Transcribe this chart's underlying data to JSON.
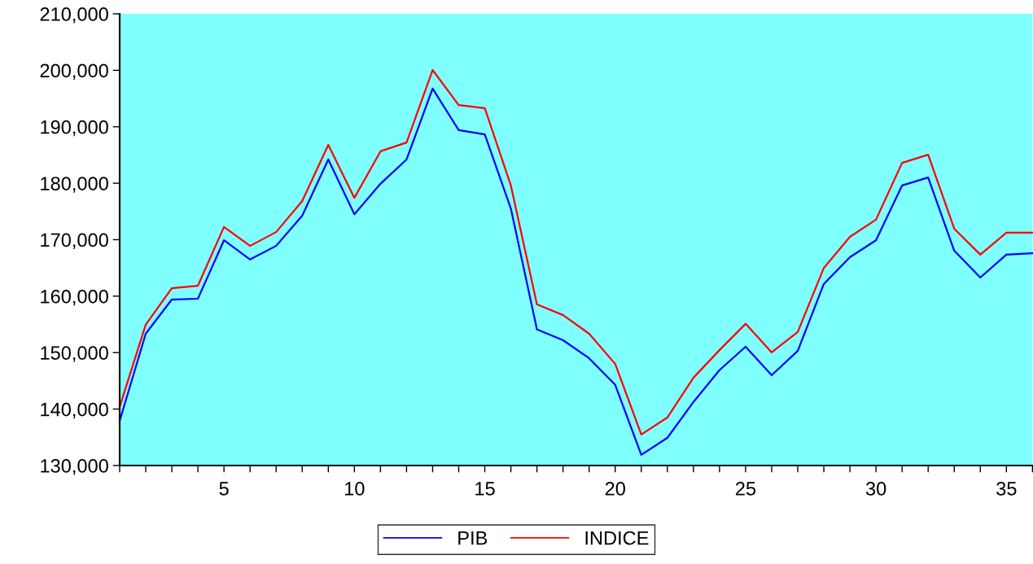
{
  "chart_data": {
    "type": "line",
    "x": [
      1,
      2,
      3,
      4,
      5,
      6,
      7,
      8,
      9,
      10,
      11,
      12,
      13,
      14,
      15,
      16,
      17,
      18,
      19,
      20,
      21,
      22,
      23,
      24,
      25,
      26,
      27,
      28,
      29,
      30,
      31,
      32,
      33,
      34,
      35,
      36
    ],
    "series": [
      {
        "name": "PIB",
        "color": "#0000ff",
        "values": [
          137900,
          153350,
          159400,
          159550,
          169900,
          166500,
          168900,
          174250,
          184200,
          174500,
          179900,
          184200,
          196750,
          189400,
          188650,
          175500,
          154100,
          152200,
          149000,
          144300,
          131900,
          134900,
          141250,
          146900,
          151050,
          146000,
          150300,
          162150,
          166900,
          169900,
          179600,
          181000,
          168050,
          163300,
          167350,
          167600
        ]
      },
      {
        "name": "INDICE",
        "color": "#ff0000",
        "values": [
          140400,
          154950,
          161400,
          161850,
          172250,
          168900,
          171350,
          176850,
          186800,
          177400,
          185650,
          187200,
          200050,
          193850,
          193300,
          179600,
          158550,
          156650,
          153350,
          148000,
          135500,
          138500,
          145550,
          150450,
          155100,
          150050,
          153650,
          165000,
          170500,
          173550,
          183600,
          185050,
          171950,
          167350,
          171250,
          171250
        ]
      }
    ],
    "xlim": [
      1,
      36
    ],
    "xticks": [
      {
        "value": 1,
        "label": null
      },
      {
        "value": 2,
        "label": null
      },
      {
        "value": 3,
        "label": null
      },
      {
        "value": 4,
        "label": null
      },
      5,
      {
        "value": 6,
        "label": null
      },
      {
        "value": 7,
        "label": null
      },
      {
        "value": 8,
        "label": null
      },
      {
        "value": 9,
        "label": null
      },
      10,
      {
        "value": 11,
        "label": null
      },
      {
        "value": 12,
        "label": null
      },
      {
        "value": 13,
        "label": null
      },
      {
        "value": 14,
        "label": null
      },
      15,
      {
        "value": 16,
        "label": null
      },
      {
        "value": 17,
        "label": null
      },
      {
        "value": 18,
        "label": null
      },
      {
        "value": 19,
        "label": null
      },
      20,
      {
        "value": 21,
        "label": null
      },
      {
        "value": 22,
        "label": null
      },
      {
        "value": 23,
        "label": null
      },
      {
        "value": 24,
        "label": null
      },
      25,
      {
        "value": 26,
        "label": null
      },
      {
        "value": 27,
        "label": null
      },
      {
        "value": 28,
        "label": null
      },
      {
        "value": 29,
        "label": null
      },
      30,
      {
        "value": 31,
        "label": null
      },
      {
        "value": 32,
        "label": null
      },
      {
        "value": 33,
        "label": null
      },
      {
        "value": 34,
        "label": null
      },
      35,
      {
        "value": 36,
        "label": null
      }
    ],
    "ylim": [
      130000,
      210000
    ],
    "yticks": [
      {
        "value": 130000,
        "label": "130,000"
      },
      {
        "value": 140000,
        "label": "140,000"
      },
      {
        "value": 150000,
        "label": "150,000"
      },
      {
        "value": 160000,
        "label": "160,000"
      },
      {
        "value": 170000,
        "label": "170,000"
      },
      {
        "value": 180000,
        "label": "180,000"
      },
      {
        "value": 190000,
        "label": "190,000"
      },
      {
        "value": 200000,
        "label": "200,000"
      },
      {
        "value": 210000,
        "label": "210,000"
      }
    ],
    "grid": false,
    "legend": "bottom",
    "line_style": "solid",
    "marker": "none"
  }
}
